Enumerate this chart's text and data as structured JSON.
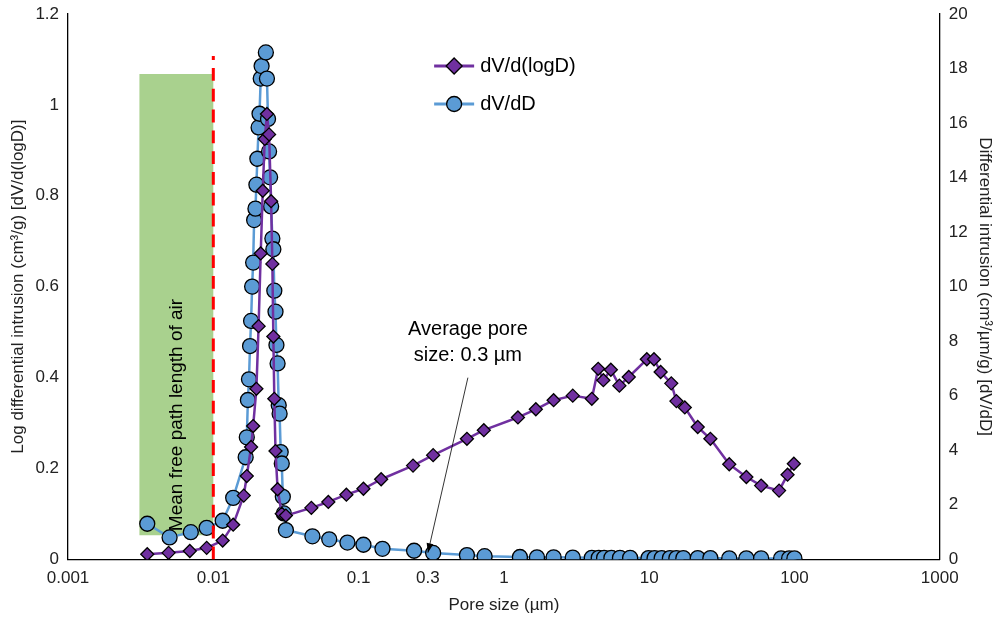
{
  "chart_data": {
    "type": "line",
    "xlabel": "Pore size (µm)",
    "ylabel": "Log differential intrusion (cm³/g) [dV/d(logD)]",
    "y2label": "Differential intrusion (cm³/µm/g) [dV/dD]",
    "log": "x",
    "xlim": [
      0.001,
      1000
    ],
    "xticks": [
      0.001,
      0.01,
      0.1,
      0.3,
      1,
      10,
      100,
      1000
    ],
    "ylim": [
      0,
      1.2
    ],
    "yticks": [
      0,
      0.2,
      0.4,
      0.6,
      0.8,
      1,
      1.2
    ],
    "y2lim": [
      0,
      20
    ],
    "y2ticks": [
      0,
      2,
      4,
      6,
      8,
      10,
      12,
      14,
      16,
      18,
      20
    ],
    "grid": false,
    "legend": "top",
    "line_style": "solid",
    "series": [
      {
        "name": "dV/d(logD)",
        "color": "#7030a0",
        "marker": "diamond",
        "x": [
          0.00351,
          0.00492,
          0.00689,
          0.009,
          0.0116,
          0.0137,
          0.0162,
          0.017,
          0.0182,
          0.0188,
          0.0198,
          0.0205,
          0.0212,
          0.0219,
          0.0226,
          0.0234,
          0.0242,
          0.025,
          0.0255,
          0.0259,
          0.0263,
          0.0268,
          0.0277,
          0.0296,
          0.0316,
          0.0473,
          0.0619,
          0.0824,
          0.108,
          0.143,
          0.237,
          0.326,
          0.557,
          0.728,
          1.25,
          1.66,
          2.2,
          2.98,
          4.03,
          4.46,
          4.84,
          5.45,
          6.24,
          7.24,
          9.64,
          10.8,
          12,
          14.2,
          15.4,
          17.6,
          21.6,
          26.4,
          35.6,
          46.7,
          59,
          78.4,
          89.7,
          99.1
        ],
        "values": [
          0.011,
          0.014,
          0.018,
          0.025,
          0.041,
          0.076,
          0.14,
          0.183,
          0.247,
          0.293,
          0.375,
          0.513,
          0.673,
          0.811,
          0.925,
          0.98,
          0.935,
          0.788,
          0.65,
          0.49,
          0.353,
          0.238,
          0.154,
          0.1,
          0.096,
          0.113,
          0.126,
          0.142,
          0.155,
          0.176,
          0.206,
          0.229,
          0.265,
          0.284,
          0.312,
          0.33,
          0.35,
          0.36,
          0.353,
          0.419,
          0.394,
          0.417,
          0.382,
          0.401,
          0.44,
          0.44,
          0.412,
          0.387,
          0.348,
          0.334,
          0.291,
          0.265,
          0.209,
          0.181,
          0.162,
          0.151,
          0.186,
          0.21
        ]
      },
      {
        "name": "dV/dD",
        "color": "#5b9bd5",
        "marker": "circle",
        "axis": "y2",
        "x": [
          0.00351,
          0.005,
          0.007,
          0.009,
          0.0116,
          0.0137,
          0.0167,
          0.017,
          0.0173,
          0.0176,
          0.0179,
          0.0182,
          0.0185,
          0.0188,
          0.0191,
          0.0195,
          0.0198,
          0.0201,
          0.0205,
          0.0208,
          0.0212,
          0.0215,
          0.023,
          0.0234,
          0.0238,
          0.0242,
          0.0246,
          0.025,
          0.0255,
          0.0259,
          0.0263,
          0.0268,
          0.0272,
          0.0277,
          0.0282,
          0.0286,
          0.0291,
          0.0296,
          0.0301,
          0.0306,
          0.0316,
          0.0481,
          0.0628,
          0.0838,
          0.108,
          0.146,
          0.241,
          0.326,
          0.557,
          0.737,
          1.29,
          1.69,
          2.2,
          2.98,
          4.03,
          4.5,
          4.9,
          5.5,
          6.3,
          7.4,
          9.9,
          10.9,
          12.2,
          13.9,
          15.4,
          17.2,
          21.6,
          26.4,
          35.6,
          46.7,
          59,
          81,
          92,
          100
        ],
        "values": [
          1.3,
          0.8,
          0.99,
          1.15,
          1.41,
          2.25,
          3.74,
          4.47,
          5.84,
          6.6,
          7.82,
          8.74,
          10,
          10.88,
          12.44,
          12.86,
          13.74,
          14.69,
          15.84,
          16.34,
          17.63,
          18.09,
          18.59,
          17.63,
          16.15,
          14.96,
          14.01,
          12.94,
          11.76,
          11.37,
          9.85,
          9.08,
          7.86,
          7.18,
          5.65,
          5.34,
          3.93,
          3.51,
          2.29,
          1.68,
          1.07,
          0.84,
          0.73,
          0.61,
          0.53,
          0.38,
          0.31,
          0.23,
          0.15,
          0.11,
          0.08,
          0.07,
          0.07,
          0.06,
          0.05,
          0.05,
          0.05,
          0.05,
          0.05,
          0.05,
          0.04,
          0.04,
          0.04,
          0.04,
          0.04,
          0.04,
          0.04,
          0.04,
          0.03,
          0.03,
          0.03,
          0.03,
          0.03,
          0.03
        ]
      }
    ],
    "ref_lines": [
      {
        "axis": "x",
        "value": 0.01,
        "color": "#ff0000",
        "line_style": "dashed"
      }
    ],
    "bands": [
      {
        "axis": "x",
        "from": 0.0031,
        "to": 0.01,
        "label": "Mean free path length of air",
        "color": "#a9d18e"
      }
    ],
    "annotations": [
      {
        "text": "Average pore size: 0.3 µm",
        "x": 0.3,
        "y": 0.01
      }
    ]
  }
}
